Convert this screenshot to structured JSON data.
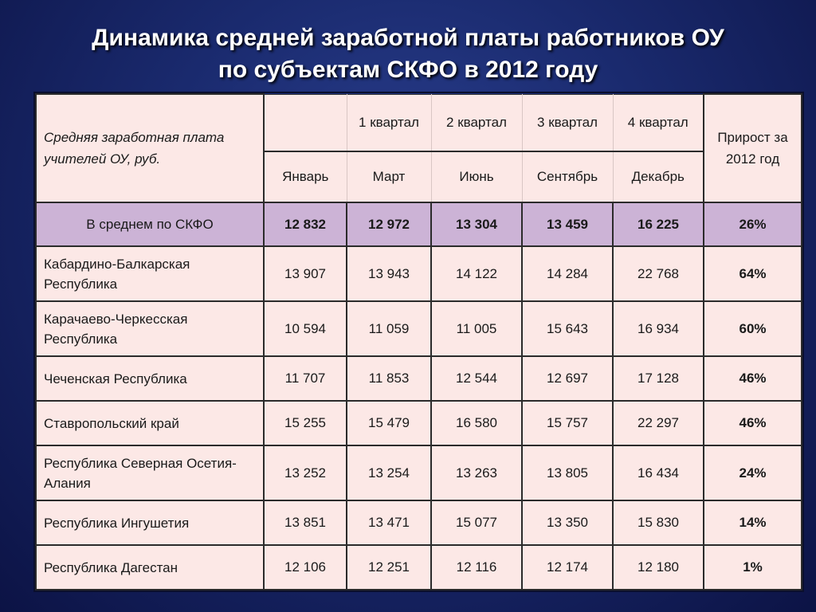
{
  "title": {
    "line1": "Динамика средней заработной платы работников ОУ",
    "line2": "по субъектам СКФО в 2012 году"
  },
  "header": {
    "description": "Средняя заработная плата учителей ОУ, руб.",
    "quarters": [
      "",
      "1 квартал",
      "2 квартал",
      "3 квартал",
      "4 квартал"
    ],
    "months": [
      "Январь",
      "Март",
      "Июнь",
      "Сентябрь",
      "Декабрь"
    ],
    "growth": "Прирост за 2012 год"
  },
  "average": {
    "label": "В среднем по СКФО",
    "values": [
      "12 832",
      "12 972",
      "13 304",
      "13 459",
      "16 225"
    ],
    "growth": "26%"
  },
  "rows": [
    {
      "name": "Кабардино-Балкарская Республика",
      "values": [
        "13 907",
        "13 943",
        "14 122",
        "14 284",
        "22 768"
      ],
      "growth": "64%"
    },
    {
      "name": "Карачаево-Черкесская Республика",
      "values": [
        "10 594",
        "11 059",
        "11 005",
        "15 643",
        "16 934"
      ],
      "growth": "60%"
    },
    {
      "name": "Чеченская Республика",
      "values": [
        "11 707",
        "11 853",
        "12 544",
        "12 697",
        "17 128"
      ],
      "growth": "46%"
    },
    {
      "name": "Ставропольский край",
      "values": [
        "15 255",
        "15 479",
        "16 580",
        "15 757",
        "22 297"
      ],
      "growth": "46%"
    },
    {
      "name": "Республика Северная Осетия-Алания",
      "values": [
        "13 252",
        "13 254",
        "13 263",
        "13 805",
        "16 434"
      ],
      "growth": "24%"
    },
    {
      "name": "Республика Ингушетия",
      "values": [
        "13 851",
        "13 471",
        "15 077",
        "13 350",
        "15 830"
      ],
      "growth": "14%"
    },
    {
      "name": "Республика Дагестан",
      "values": [
        "12 106",
        "12 251",
        "12 116",
        "12 174",
        "12 180"
      ],
      "growth": "1%"
    }
  ]
}
